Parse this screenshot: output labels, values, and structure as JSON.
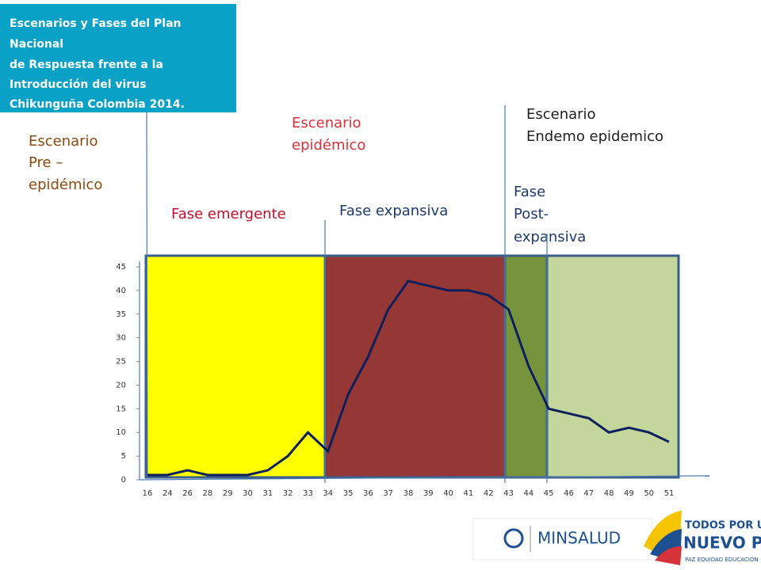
{
  "title_lines": [
    "Escenarios y Fases del Plan",
    "Nacional",
    "de Respuesta frente a la",
    "Introducción del virus",
    "Chikunguña Colombia 2014."
  ],
  "scenarios": [
    {
      "lines": [
        "Escenario",
        "Pre –",
        "epidémico"
      ]
    },
    {
      "lines": [
        "Escenario",
        "epidémico"
      ]
    },
    {
      "lines": [
        "Escenario",
        "Endemo epidemico"
      ]
    }
  ],
  "phases": [
    {
      "lines": [
        "Fase emergente"
      ]
    },
    {
      "lines": [
        "Fase expansiva"
      ]
    },
    {
      "lines": [
        "Fase",
        "Post-",
        "expansiva"
      ]
    }
  ],
  "logos": {
    "ministry": "MINSALUD",
    "gov_line1": "TODOS POR UN",
    "gov_line2": "NUEVO PAÍS",
    "gov_line3": "PAZ EQUIDAD EDUCACIÓN"
  },
  "chart_data": {
    "type": "line",
    "categories": [
      "16",
      "24",
      "26",
      "28",
      "29",
      "30",
      "31",
      "32",
      "33",
      "34",
      "35",
      "36",
      "37",
      "38",
      "39",
      "40",
      "41",
      "42",
      "43",
      "44",
      "45",
      "46",
      "47",
      "48",
      "49",
      "50",
      "51"
    ],
    "values": [
      1,
      1,
      2,
      1,
      1,
      1,
      2,
      5,
      10,
      6,
      18,
      26,
      36,
      42,
      41,
      40,
      40,
      39,
      36,
      24,
      15,
      14,
      13,
      10,
      11,
      10,
      8
    ],
    "color": "#0d1f5c",
    "ylim": [
      0,
      45
    ],
    "yticks": [
      0,
      5,
      10,
      15,
      20,
      25,
      30,
      35,
      40,
      45
    ]
  }
}
